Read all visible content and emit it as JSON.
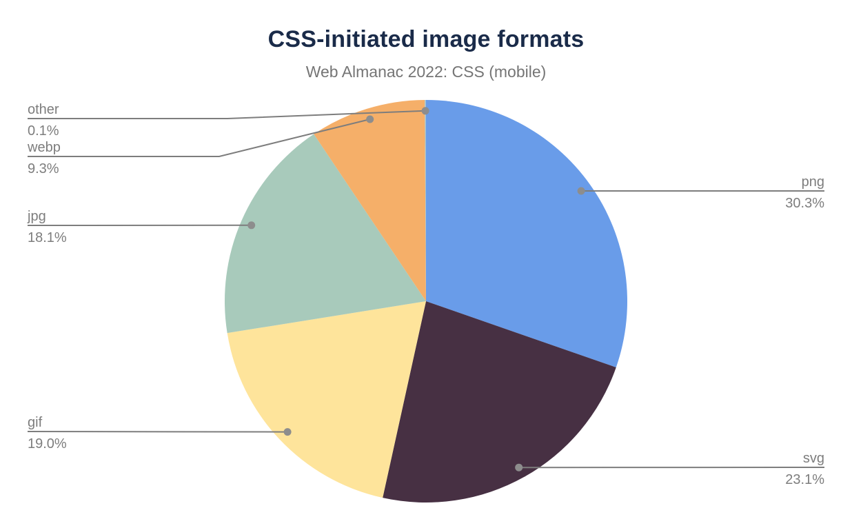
{
  "chart_data": {
    "type": "pie",
    "title": "CSS-initiated image formats",
    "subtitle": "Web Almanac 2022: CSS (mobile)",
    "unit": "%",
    "start_angle_deg": 0,
    "direction": "clockwise",
    "legend": "none",
    "label_style": "callout-leader-lines",
    "slices": [
      {
        "label": "png",
        "value": 30.3,
        "display": "30.3%",
        "color": "#699CE9"
      },
      {
        "label": "svg",
        "value": 23.1,
        "display": "23.1%",
        "color": "#473043"
      },
      {
        "label": "gif",
        "value": 19.0,
        "display": "19.0%",
        "color": "#FEE49B"
      },
      {
        "label": "jpg",
        "value": 18.1,
        "display": "18.1%",
        "color": "#A8CABB"
      },
      {
        "label": "webp",
        "value": 9.3,
        "display": "9.3%",
        "color": "#F5AF69"
      },
      {
        "label": "other",
        "value": 0.1,
        "display": "0.1%",
        "color": "#A5C4CE"
      }
    ]
  },
  "colors": {
    "background": "#ffffff",
    "title": "#1a2b49",
    "subtitle": "#757575",
    "label_text": "#7d7d7d",
    "leader_line": "#7d7d7d",
    "leader_dot": "#8d8d8d"
  }
}
